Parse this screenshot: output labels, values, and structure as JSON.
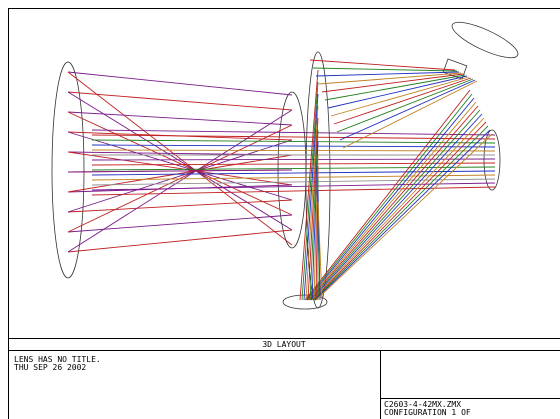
{
  "header": {
    "title": "3D LAYOUT"
  },
  "info": {
    "lens_title": "LENS HAS NO TITLE.",
    "date": "THU SEP 26 2002",
    "file": "C2603-4-42MX.ZMX",
    "configuration": "CONFIGURATION 1 OF"
  }
}
